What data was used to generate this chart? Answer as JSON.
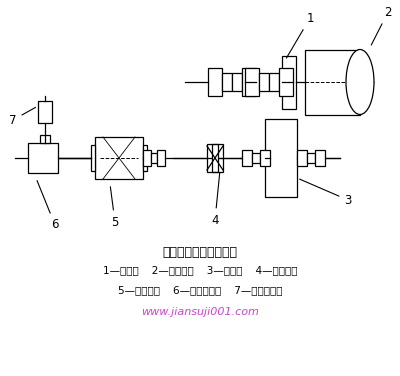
{
  "title": "筒形磨边缘单传动装置",
  "legend_line1": "1—大齿轮    2—磨机筒体    3—小齿轮    4—主减速机",
  "legend_line2": "5—主电动机    6—辅助减速机    7—辅助电动机",
  "watermark": "www.jiansuji001.com",
  "bg_color": "#ffffff",
  "line_color": "#000000"
}
